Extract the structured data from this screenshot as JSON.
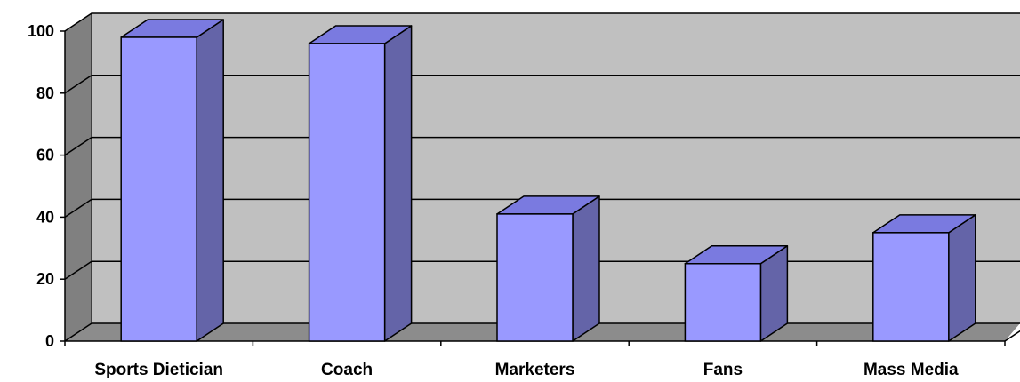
{
  "chart_data": {
    "type": "bar",
    "categories": [
      "Sports Dietician",
      "Coach",
      "Marketers",
      "Fans",
      "Mass Media"
    ],
    "values": [
      98,
      96,
      41,
      25,
      35
    ],
    "title": "",
    "xlabel": "",
    "ylabel": "",
    "ylim": [
      0,
      100
    ],
    "yticks": [
      "0",
      "20",
      "40",
      "60",
      "80",
      "100"
    ],
    "grid": true,
    "legend": "none",
    "three_d": true
  },
  "colors": {
    "bar_front": "#9999ff",
    "bar_side": "#6464a8",
    "bar_top": "#7a7ae0",
    "plot_back_wall": "#c0c0c0",
    "side_wall": "#808080",
    "floor": "#8c8c8c",
    "gridline": "#000000"
  }
}
